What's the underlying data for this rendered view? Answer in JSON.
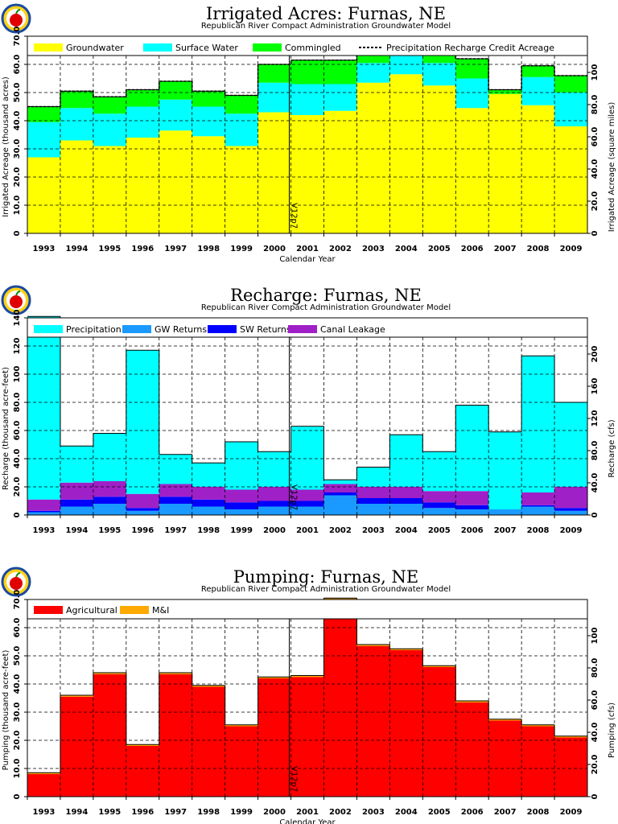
{
  "chart_data": [
    {
      "type": "area",
      "title": "Irrigated  Acres:  Furnas,  NE",
      "subtitle": "Republican  River  Compact  Administration  Groundwater  Model",
      "xlabel": "Calendar  Year",
      "ylabel": "Irrigated  Acreage  (thousand  acres)",
      "ylabel_right": "Irrigated  Acreage  (square  miles)",
      "marker_label": "V12p7",
      "categories": [
        "1993",
        "1994",
        "1995",
        "1996",
        "1997",
        "1998",
        "1999",
        "2000",
        "2001",
        "2002",
        "2003",
        "2004",
        "2005",
        "2006",
        "2007",
        "2008",
        "2009"
      ],
      "ylim": [
        0,
        70
      ],
      "yticks": [
        "0",
        "10.0",
        "20.0",
        "30.0",
        "40.0",
        "50.0",
        "60.0",
        "70.0"
      ],
      "yticks_right": [
        "0",
        "20.0",
        "40.0",
        "60.0",
        "80.0",
        "100"
      ],
      "series": [
        {
          "name": "Groundwater",
          "color": "#ffff00",
          "values": [
            27,
            33,
            31,
            34,
            36.5,
            34.5,
            31,
            43,
            42,
            43.5,
            53.5,
            56.5,
            52.5,
            44.5,
            49.5,
            45.5,
            38
          ]
        },
        {
          "name": "Surface  Water",
          "color": "#00ffff",
          "values": [
            12.5,
            11.5,
            11.5,
            11,
            11,
            10.5,
            11.5,
            10.5,
            11,
            9.5,
            7,
            6.5,
            8,
            10.5,
            0,
            10,
            12
          ]
        },
        {
          "name": "Commingled",
          "color": "#00ff00",
          "values": [
            5.5,
            6,
            6,
            6,
            6.5,
            5.5,
            6.5,
            6.5,
            8.5,
            8.5,
            5.5,
            6.5,
            5,
            7,
            1.5,
            4,
            6
          ]
        }
      ],
      "line": {
        "name": "Precipitation  Recharge  Credit  Acreage",
        "values": [
          45,
          50.5,
          48.5,
          51,
          54,
          50.5,
          49,
          60,
          61.5,
          61.5,
          66,
          69.5,
          65.5,
          62,
          51,
          59.5,
          56
        ]
      }
    },
    {
      "type": "area",
      "title": "Recharge:  Furnas,  NE",
      "subtitle": "Republican  River  Compact  Administration  Groundwater  Model",
      "xlabel": "",
      "ylabel": "Recharge  (thousand  acre-feet)",
      "ylabel_right": "Recharge  (cfs)",
      "marker_label": "V12p7",
      "categories": [
        "1993",
        "1994",
        "1995",
        "1996",
        "1997",
        "1998",
        "1999",
        "2000",
        "2001",
        "2002",
        "2003",
        "2004",
        "2005",
        "2006",
        "2007",
        "2008",
        "2009"
      ],
      "ylim": [
        0,
        140
      ],
      "yticks": [
        "0",
        "20.0",
        "40.0",
        "60.0",
        "80.0",
        "100",
        "120",
        "140"
      ],
      "yticks_right": [
        "0",
        "40.0",
        "80.0",
        "120",
        "160",
        "200"
      ],
      "series": [
        {
          "name": "GW  Returns",
          "color": "#1a9aff",
          "values": [
            2,
            6,
            8,
            3,
            8,
            6,
            4,
            6,
            6,
            14,
            8,
            8,
            5,
            4,
            4,
            6,
            3
          ]
        },
        {
          "name": "SW  Returns",
          "color": "#0000ff",
          "values": [
            1,
            5,
            5,
            2,
            5,
            5,
            5,
            4,
            4,
            2,
            4,
            4,
            4,
            3,
            0,
            1,
            2
          ]
        },
        {
          "name": "Canal  Leakage",
          "color": "#a020c8",
          "values": [
            8,
            12,
            11,
            10,
            9,
            9,
            9,
            10,
            8,
            6,
            8,
            8,
            8,
            10,
            0,
            9,
            15
          ]
        },
        {
          "name": "Precipitation",
          "color": "#00ffff",
          "values": [
            130,
            26,
            34,
            102,
            21,
            17,
            34,
            25,
            45,
            3,
            14,
            37,
            28,
            61,
            55,
            97,
            60
          ]
        }
      ]
    },
    {
      "type": "area",
      "title": "Pumping:  Furnas,  NE",
      "subtitle": "Republican  River  Compact  Administration  Groundwater  Model",
      "xlabel": "Calendar  Year",
      "ylabel": "Pumping  (thousand  acre-feet)",
      "ylabel_right": "Pumping  (cfs)",
      "marker_label": "V12p7",
      "categories": [
        "1993",
        "1994",
        "1995",
        "1996",
        "1997",
        "1998",
        "1999",
        "2000",
        "2001",
        "2002",
        "2003",
        "2004",
        "2005",
        "2006",
        "2007",
        "2008",
        "2009"
      ],
      "ylim": [
        0,
        70
      ],
      "yticks": [
        "0",
        "10.0",
        "20.0",
        "30.0",
        "40.0",
        "50.0",
        "60.0",
        "70.0"
      ],
      "yticks_right": [
        "0",
        "20.0",
        "40.0",
        "60.0",
        "80.0",
        "100"
      ],
      "series": [
        {
          "name": "Agricultural",
          "color": "#ff0000",
          "values": [
            8,
            35.5,
            43.5,
            18,
            43.5,
            39,
            25,
            42,
            42.5,
            70,
            53.5,
            52,
            46,
            33.5,
            27,
            25,
            21
          ]
        },
        {
          "name": "M&I",
          "color": "#ffaa00",
          "values": [
            0.5,
            0.5,
            0.5,
            0.5,
            0.5,
            0.5,
            0.5,
            0.5,
            0.5,
            0.5,
            0.5,
            0.5,
            0.5,
            0.5,
            0.5,
            0.5,
            0.5
          ]
        }
      ]
    }
  ]
}
